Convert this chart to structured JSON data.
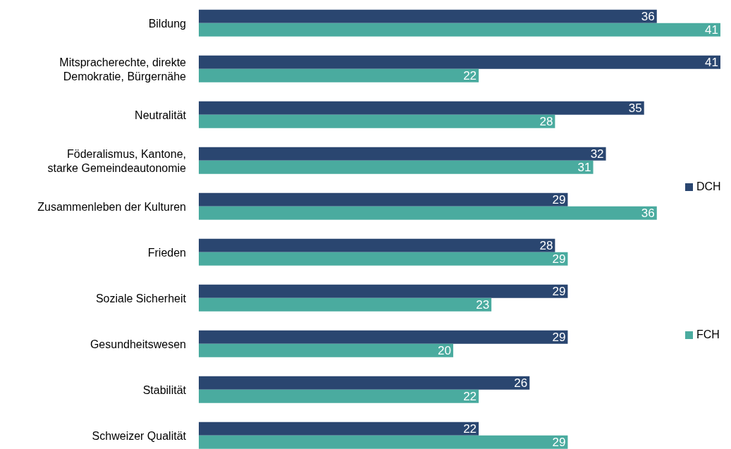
{
  "chart_data": {
    "type": "bar",
    "orientation": "horizontal",
    "categories": [
      "Bildung",
      "Mitspracherechte, direkte Demokratie, Bürgernähe",
      "Neutralität",
      "Föderalismus, Kantone, starke Gemeindeautonomie",
      "Zusammenleben der Kulturen",
      "Frieden",
      "Soziale Sicherheit",
      "Gesundheitswesen",
      "Stabilität",
      "Schweizer Qualität"
    ],
    "series": [
      {
        "name": "DCH",
        "color": "#2a4670",
        "values": [
          36,
          41,
          35,
          32,
          29,
          28,
          29,
          29,
          26,
          22
        ]
      },
      {
        "name": "FCH",
        "color": "#4aab9f",
        "values": [
          41,
          22,
          28,
          31,
          36,
          29,
          23,
          20,
          22,
          29
        ]
      }
    ],
    "data_labels": true,
    "legend": "right",
    "grid": false
  }
}
